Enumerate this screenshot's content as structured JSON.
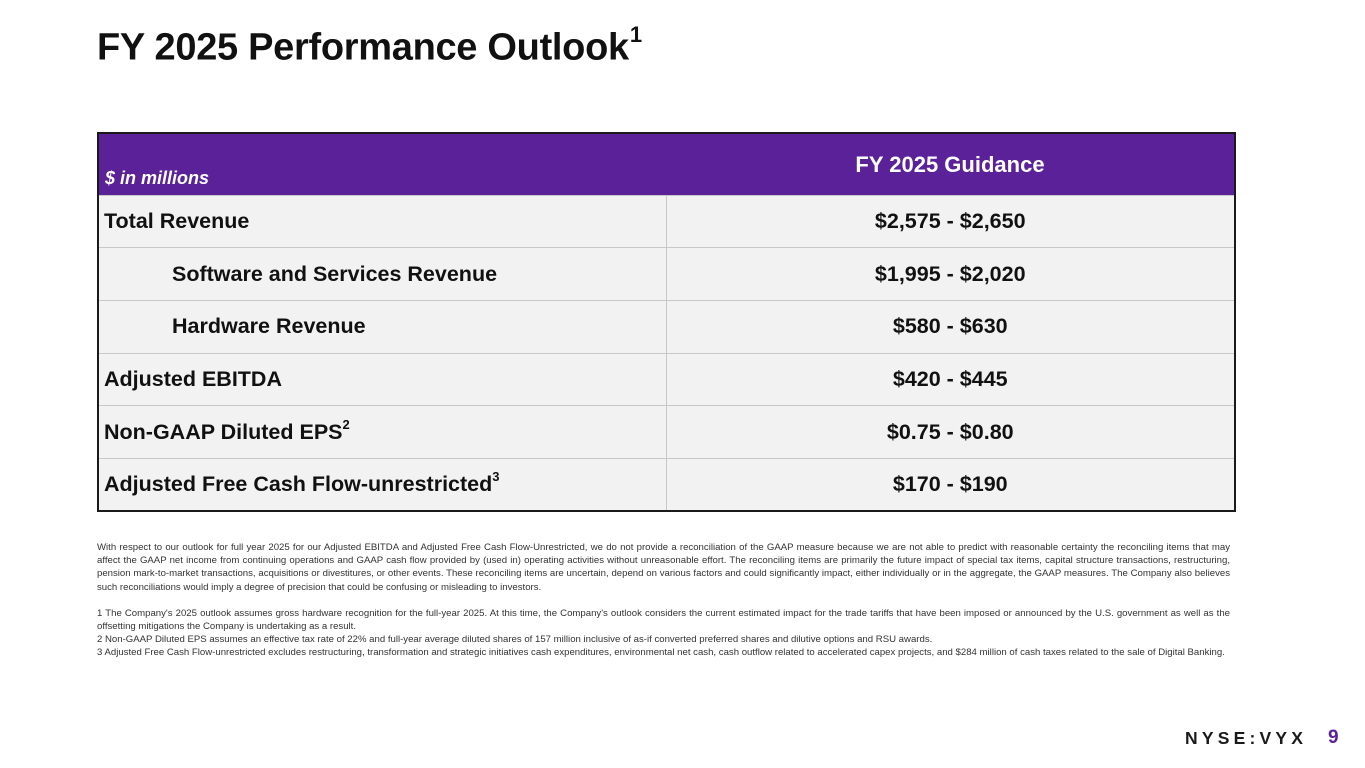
{
  "slide": {
    "title": "FY 2025 Performance Outlook",
    "title_footnote": "1",
    "ticker": "NYSE:VYX",
    "page_number": "9"
  },
  "table": {
    "header": {
      "label": "$ in millions",
      "value": "FY 2025 Guidance"
    },
    "rows": [
      {
        "label": "Total Revenue",
        "footnote": "",
        "value": "$2,575 - $2,650"
      },
      {
        "label": "Software and Services Revenue",
        "footnote": "",
        "value": "$1,995 - $2,020"
      },
      {
        "label": "Hardware Revenue",
        "footnote": "",
        "value": "$580 - $630"
      },
      {
        "label": "Adjusted EBITDA",
        "footnote": "",
        "value": "$420 - $445"
      },
      {
        "label": "Non-GAAP Diluted EPS",
        "footnote": "2",
        "value": "$0.75 - $0.80"
      },
      {
        "label": "Adjusted Free Cash Flow-unrestricted",
        "footnote": "3",
        "value": "$170 - $190"
      }
    ]
  },
  "notes": {
    "disclaimer": "With respect to our outlook for full year 2025 for our Adjusted EBITDA and Adjusted Free Cash Flow-Unrestricted, we do not provide a reconciliation of the GAAP measure because we are not able to predict with reasonable certainty the reconciling items that may affect the GAAP net income from continuing operations and GAAP cash flow provided by (used in) operating activities without unreasonable effort. The reconciling items are primarily the future impact of special tax items, capital structure transactions, restructuring, pension mark-to-market transactions, acquisitions or divestitures, or other events. These reconciling items are uncertain, depend on various factors and could significantly impact, either individually or in the aggregate, the GAAP measures. The Company also believes such reconciliations would imply a degree of precision that could be confusing or misleading to investors.",
    "footnotes": [
      "1 The Company's 2025 outlook assumes gross hardware recognition for the full-year 2025. At this time, the Company's outlook considers the current estimated impact for the trade tariffs that have been imposed or announced by the U.S. government as well as the offsetting mitigations the Company is undertaking as a result.",
      "2 Non-GAAP Diluted EPS assumes an effective tax rate of 22% and full-year average diluted shares of 157 million inclusive of as-if converted preferred shares and dilutive options and RSU awards.",
      "3 Adjusted Free Cash Flow-unrestricted excludes restructuring, transformation and strategic initiatives cash expenditures, environmental net cash, cash outflow related to accelerated capex projects, and $284 million of cash taxes related to the sale of Digital Banking."
    ]
  }
}
